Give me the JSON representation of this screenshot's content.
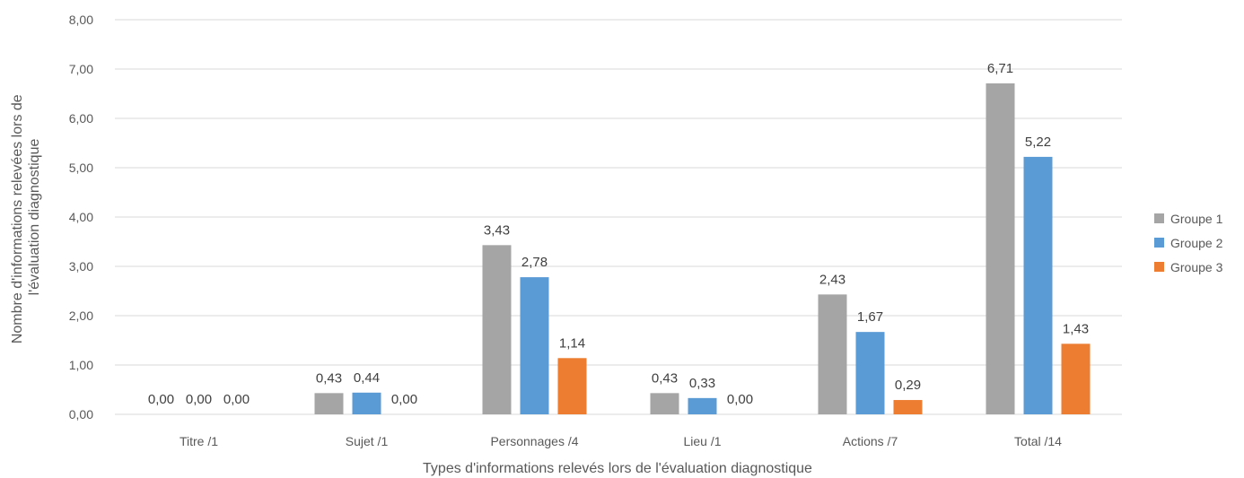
{
  "chart_data": {
    "type": "bar",
    "title": "",
    "xlabel": "Types d'informations relevés lors de l'évaluation diagnostique",
    "ylabel_lines": [
      "Nombre d'informations relevées lors de",
      "l'évaluation diagnostique"
    ],
    "categories": [
      "Titre /1",
      "Sujet /1",
      "Personnages /4",
      "Lieu /1",
      "Actions /7",
      "Total /14"
    ],
    "ylim": [
      0,
      8
    ],
    "yticks": [
      0,
      1,
      2,
      3,
      4,
      5,
      6,
      7,
      8
    ],
    "ytick_labels": [
      "0,00",
      "1,00",
      "2,00",
      "3,00",
      "4,00",
      "5,00",
      "6,00",
      "7,00",
      "8,00"
    ],
    "grid": true,
    "legend_position": "right",
    "series": [
      {
        "name": "Groupe 1",
        "color": "#a5a5a5",
        "values": [
          0.0,
          0.43,
          3.43,
          0.43,
          2.43,
          6.71
        ],
        "labels": [
          "0,00",
          "0,43",
          "3,43",
          "0,43",
          "2,43",
          "6,71"
        ]
      },
      {
        "name": "Groupe 2",
        "color": "#5b9bd5",
        "values": [
          0.0,
          0.44,
          2.78,
          0.33,
          1.67,
          5.22
        ],
        "labels": [
          "0,00",
          "0,44",
          "2,78",
          "0,33",
          "1,67",
          "5,22"
        ]
      },
      {
        "name": "Groupe 3",
        "color": "#ed7d31",
        "values": [
          0.0,
          0.0,
          1.14,
          0.0,
          0.29,
          1.43
        ],
        "labels": [
          "0,00",
          "0,00",
          "1,14",
          "0,00",
          "0,29",
          "1,43"
        ]
      }
    ]
  }
}
